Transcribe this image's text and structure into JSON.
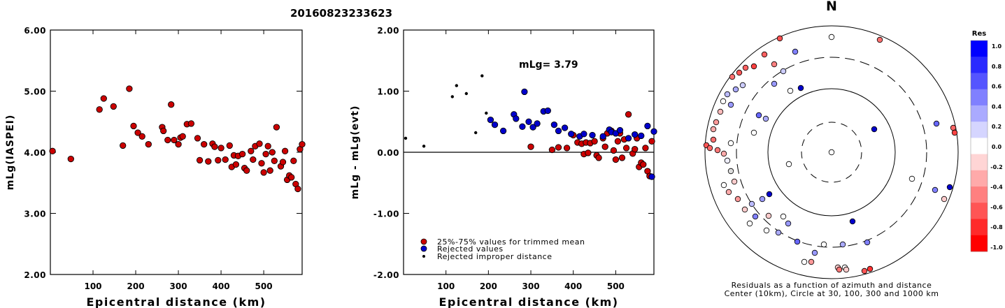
{
  "title": "20160823233623",
  "compass_label": "N",
  "colorbar": {
    "title": "Res",
    "ticks": [
      "1.0",
      "0.8",
      "0.6",
      "0.4",
      "0.2",
      "0.0",
      "-0.2",
      "-0.4",
      "-0.6",
      "-0.8",
      "-1.0"
    ],
    "colors": [
      "#0000ff",
      "#2a2aff",
      "#5555ff",
      "#8080ff",
      "#aaaaff",
      "#d5d5ff",
      "#ffffff",
      "#ffd5d5",
      "#ffaaaa",
      "#ff8080",
      "#ff5555",
      "#ff2a2a",
      "#ff0000"
    ]
  },
  "legend": {
    "items": [
      {
        "label": "25%-75% values for trimmed mean",
        "color": "#cc0000"
      },
      {
        "label": "Rejected values",
        "color": "#0000cc"
      },
      {
        "label": "Rejected improper distance",
        "color": "#000000"
      }
    ]
  },
  "polar_caption": {
    "line1": "Residuals as a function of azimuth and distance",
    "line2": "Center (10km), Circle at 30, 100, 300 and 1000 km"
  },
  "chart_data": [
    {
      "type": "scatter",
      "title": "",
      "xlabel": "Epicentral distance (km)",
      "ylabel": "mLg(IASPEI)",
      "xlim": [
        0,
        590
      ],
      "ylim": [
        2.0,
        6.0
      ],
      "xticks": [
        "100",
        "200",
        "300",
        "400",
        "500"
      ],
      "yticks": [
        "2.00",
        "3.00",
        "4.00",
        "5.00",
        "6.00"
      ],
      "series": [
        {
          "name": "25%-75% values for trimmed mean",
          "color": "#cc0000",
          "x": [
            5,
            48,
            115,
            125,
            148,
            170,
            185,
            195,
            205,
            215,
            230,
            262,
            265,
            275,
            283,
            290,
            300,
            305,
            310,
            320,
            330,
            345,
            350,
            360,
            370,
            380,
            385,
            393,
            400,
            410,
            420,
            425,
            430,
            435,
            440,
            450,
            455,
            460,
            470,
            475,
            480,
            490,
            495,
            500,
            505,
            510,
            515,
            520,
            525,
            530,
            540,
            545,
            550,
            555,
            560,
            565,
            570,
            575,
            580,
            585,
            590
          ],
          "y": [
            4.02,
            3.89,
            4.7,
            4.88,
            4.75,
            4.11,
            5.04,
            4.43,
            4.32,
            4.26,
            4.13,
            4.41,
            4.35,
            4.2,
            4.78,
            4.2,
            4.13,
            4.24,
            4.26,
            4.46,
            4.47,
            4.23,
            3.87,
            4.13,
            3.85,
            4.14,
            4.09,
            3.87,
            4.07,
            3.88,
            4.11,
            3.76,
            3.95,
            3.8,
            3.94,
            3.97,
            3.74,
            3.7,
            4.02,
            3.88,
            4.1,
            4.14,
            3.82,
            3.67,
            3.97,
            4.1,
            3.7,
            4.0,
            3.86,
            4.41,
            3.77,
            3.84,
            4.02,
            3.55,
            3.62,
            3.59,
            3.86,
            3.48,
            3.4,
            4.05,
            4.13
          ]
        }
      ]
    },
    {
      "type": "scatter",
      "title": "",
      "xlabel": "Epicentral distance (km)",
      "ylabel": "mLg - mLg(evt)",
      "annotation": "mLg= 3.79",
      "xlim": [
        0,
        590
      ],
      "ylim": [
        -2.0,
        2.0
      ],
      "xticks": [
        "100",
        "200",
        "300",
        "400",
        "500"
      ],
      "yticks": [
        "-2.00",
        "-1.00",
        "0.00",
        "1.00",
        "2.00"
      ],
      "series": [
        {
          "name": "25%-75% values for trimmed mean",
          "color": "#cc0000",
          "x": [
            300,
            350,
            365,
            385,
            400,
            410,
            420,
            425,
            430,
            435,
            440,
            450,
            455,
            460,
            470,
            475,
            480,
            490,
            495,
            500,
            505,
            510,
            515,
            520,
            525,
            530,
            540,
            545,
            550,
            555,
            560,
            565,
            570,
            575,
            580,
            585
          ],
          "y": [
            0.09,
            0.04,
            0.08,
            0.07,
            0.28,
            0.16,
            0.14,
            -0.03,
            0.16,
            -0.01,
            0.15,
            0.18,
            -0.05,
            -0.09,
            0.23,
            0.09,
            0.31,
            0.35,
            0.03,
            -0.12,
            0.18,
            0.31,
            -0.09,
            0.21,
            0.07,
            0.62,
            -0.02,
            0.05,
            0.23,
            -0.24,
            -0.17,
            -0.2,
            0.07,
            -0.31,
            -0.39,
            0.18
          ]
        },
        {
          "name": "Rejected values",
          "color": "#0000cc",
          "x": [
            205,
            215,
            235,
            260,
            265,
            280,
            285,
            295,
            305,
            315,
            330,
            340,
            355,
            365,
            380,
            395,
            415,
            425,
            445,
            470,
            485,
            490,
            500,
            510,
            530,
            545,
            560,
            575,
            585,
            590
          ],
          "y": [
            0.53,
            0.45,
            0.35,
            0.62,
            0.55,
            0.42,
            0.99,
            0.5,
            0.41,
            0.47,
            0.67,
            0.68,
            0.45,
            0.35,
            0.4,
            0.3,
            0.26,
            0.3,
            0.28,
            0.26,
            0.37,
            0.33,
            0.31,
            0.36,
            0.23,
            0.29,
            0.27,
            0.43,
            -0.4,
            0.34
          ]
        },
        {
          "name": "Rejected improper distance",
          "color": "#000000",
          "x": [
            5,
            48,
            115,
            125,
            148,
            170,
            185,
            195
          ],
          "y": [
            0.23,
            0.1,
            0.91,
            1.09,
            0.96,
            0.32,
            1.25,
            0.64
          ]
        }
      ]
    }
  ]
}
